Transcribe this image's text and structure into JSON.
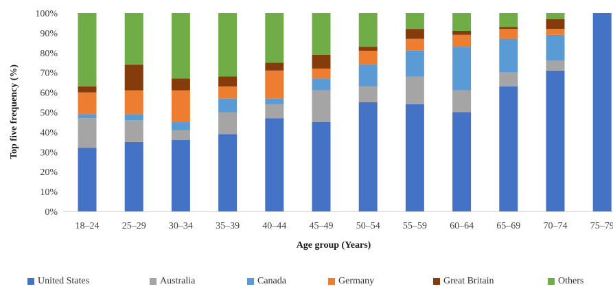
{
  "chart_data": {
    "type": "bar",
    "stacked": true,
    "title": "",
    "xlabel": "Age group (Years)",
    "ylabel": "Top five frequency (%)",
    "ylim": [
      0,
      100
    ],
    "yticks": [
      "0%",
      "10%",
      "20%",
      "30%",
      "40%",
      "50%",
      "60%",
      "70%",
      "80%",
      "90%",
      "100%"
    ],
    "categories": [
      "18–24",
      "25–29",
      "30–34",
      "35–39",
      "40–44",
      "45–49",
      "50–54",
      "55–59",
      "60–64",
      "65–69",
      "70–74",
      "75–79"
    ],
    "series": [
      {
        "name": "United States",
        "color": "#4472C4",
        "values": [
          32,
          35,
          36,
          39,
          47,
          45,
          55,
          54,
          50,
          63,
          71,
          100
        ]
      },
      {
        "name": "Australia",
        "color": "#A5A5A5",
        "values": [
          15,
          11,
          5,
          11,
          7,
          16,
          8,
          14,
          11,
          7,
          5,
          0
        ]
      },
      {
        "name": "Canada",
        "color": "#5B9BD5",
        "values": [
          2,
          3,
          4,
          7,
          3,
          6,
          11,
          13,
          22,
          17,
          13,
          0
        ]
      },
      {
        "name": "Germany",
        "color": "#ED7D31",
        "values": [
          11,
          12,
          16,
          6,
          14,
          5,
          7,
          6,
          6,
          5,
          3,
          0
        ]
      },
      {
        "name": "Great Britain",
        "color": "#843C0C",
        "values": [
          3,
          13,
          6,
          5,
          4,
          7,
          2,
          5,
          2,
          1,
          5,
          0
        ]
      },
      {
        "name": "Others",
        "color": "#70AD47",
        "values": [
          37,
          26,
          33,
          32,
          25,
          21,
          17,
          8,
          9,
          7,
          3,
          0
        ]
      }
    ],
    "grid": false,
    "legend_position": "bottom"
  }
}
